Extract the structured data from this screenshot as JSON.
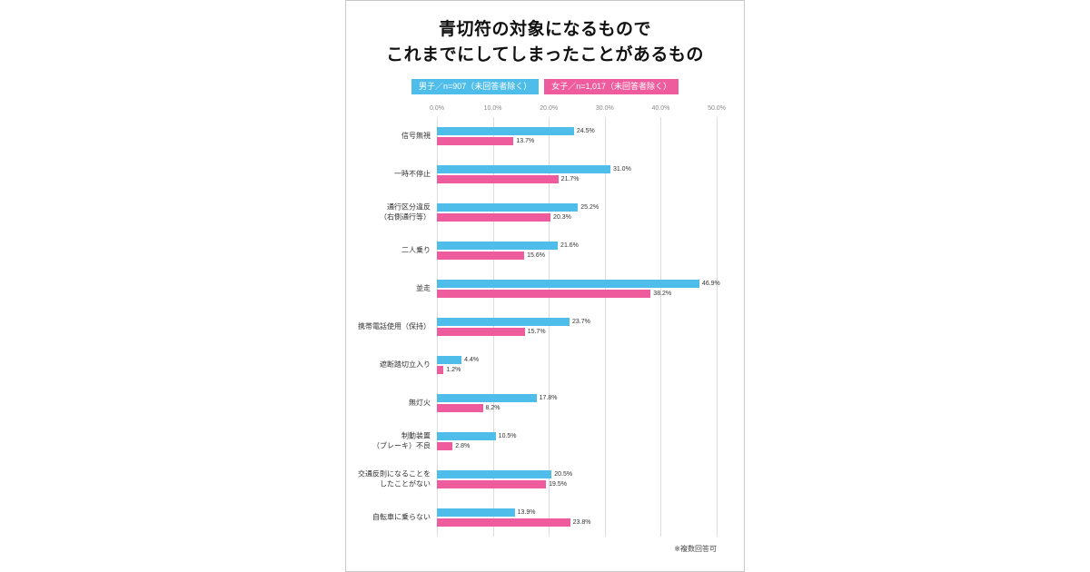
{
  "header": {
    "title_line1": "青切符の対象になるもので",
    "title_line2": "これまでにしてしまったことがあるもの"
  },
  "legend": {
    "male_label": "男子／n=907（未回答者除く）",
    "female_label": "女子／n=1,017（未回答者除く）"
  },
  "footer": {
    "note": "※複数回答可"
  },
  "colors": {
    "male": "#4ebde9",
    "female": "#ee5c9e",
    "gridline": "#dcdcdc"
  },
  "chart_data": {
    "type": "bar",
    "orientation": "horizontal",
    "title": "青切符の対象になるもので これまでにしてしまったことがあるもの",
    "legend_position": "top",
    "grid": true,
    "x_ticks": [
      "0.0%",
      "10.0%",
      "20.0%",
      "30.0%",
      "40.0%",
      "50.0%"
    ],
    "xlim": [
      0,
      50
    ],
    "value_suffix": "%",
    "note": "※複数回答可",
    "categories": [
      "信号無視",
      "一時不停止",
      "通行区分違反\n（右側通行等）",
      "二人乗り",
      "並走",
      "携帯電話使用（保持）",
      "遮断踏切立入り",
      "無灯火",
      "制動装置\n（ブレーキ）不良",
      "交通反則になることを\nしたことがない",
      "自転車に乗らない"
    ],
    "series": [
      {
        "key": "male",
        "name": "男子／n=907（未回答者除く）",
        "color": "#4ebde9",
        "values": [
          24.5,
          31.0,
          25.2,
          21.6,
          46.9,
          23.7,
          4.4,
          17.8,
          10.5,
          20.5,
          13.9
        ]
      },
      {
        "key": "female",
        "name": "女子／n=1,017（未回答者除く）",
        "color": "#ee5c9e",
        "values": [
          13.7,
          21.7,
          20.3,
          15.6,
          38.2,
          15.7,
          1.2,
          8.2,
          2.8,
          19.5,
          23.8
        ]
      }
    ]
  }
}
